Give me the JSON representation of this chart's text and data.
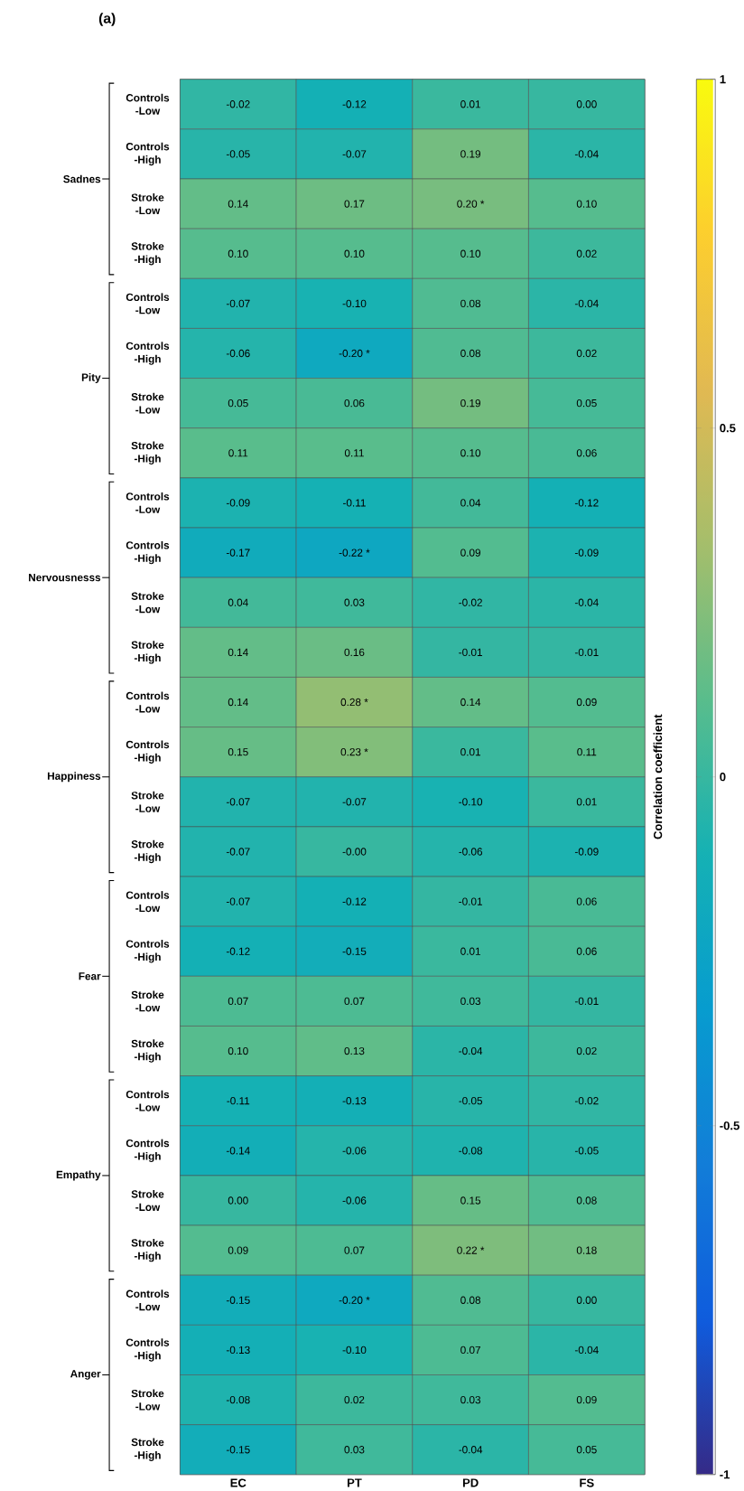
{
  "chart_data": {
    "type": "heatmap",
    "title": "(a)",
    "categories": [
      "EC",
      "PT",
      "PD",
      "FS"
    ],
    "y_categories": [
      "Controls -Low",
      "Controls -High",
      "Stroke -Low",
      "Stroke -High",
      "Controls -Low",
      "Controls -High",
      "Stroke -Low",
      "Stroke -High",
      "Controls -Low",
      "Controls -High",
      "Stroke -Low",
      "Stroke -High",
      "Controls -Low",
      "Controls -High",
      "Stroke -Low",
      "Stroke -High",
      "Controls -Low",
      "Controls -High",
      "Stroke -Low",
      "Stroke -High",
      "Controls -Low",
      "Controls -High",
      "Stroke -Low",
      "Stroke -High",
      "Controls -Low",
      "Controls -High",
      "Stroke -Low",
      "Stroke -High"
    ],
    "annotations": [
      "Sadnes",
      "Pity",
      "Nervousnesss",
      "Happiness",
      "Fear",
      "Empathy",
      "Anger"
    ],
    "cells": [
      [
        -0.02,
        -0.12,
        0.01,
        0.0
      ],
      [
        -0.05,
        -0.07,
        0.19,
        -0.04
      ],
      [
        0.14,
        0.17,
        0.2,
        0.1
      ],
      [
        0.1,
        0.1,
        0.1,
        0.02
      ],
      [
        -0.07,
        -0.1,
        0.08,
        -0.04
      ],
      [
        -0.06,
        -0.2,
        0.08,
        0.02
      ],
      [
        0.05,
        0.06,
        0.19,
        0.05
      ],
      [
        0.11,
        0.11,
        0.1,
        0.06
      ],
      [
        -0.09,
        -0.11,
        0.04,
        -0.12
      ],
      [
        -0.17,
        -0.22,
        0.09,
        -0.09
      ],
      [
        0.04,
        0.03,
        -0.02,
        -0.04
      ],
      [
        0.14,
        0.16,
        -0.01,
        -0.01
      ],
      [
        0.14,
        0.28,
        0.14,
        0.09
      ],
      [
        0.15,
        0.23,
        0.01,
        0.11
      ],
      [
        -0.07,
        -0.07,
        -0.1,
        0.01
      ],
      [
        -0.07,
        -0.0,
        -0.06,
        -0.09
      ],
      [
        -0.07,
        -0.12,
        -0.01,
        0.06
      ],
      [
        -0.12,
        -0.15,
        0.01,
        0.06
      ],
      [
        0.07,
        0.07,
        0.03,
        -0.01
      ],
      [
        0.1,
        0.13,
        -0.04,
        0.02
      ],
      [
        -0.11,
        -0.13,
        -0.05,
        -0.02
      ],
      [
        -0.14,
        -0.06,
        -0.08,
        -0.05
      ],
      [
        0.0,
        -0.06,
        0.15,
        0.08
      ],
      [
        0.09,
        0.07,
        0.22,
        0.18
      ],
      [
        -0.15,
        -0.2,
        0.08,
        0.0
      ],
      [
        -0.13,
        -0.1,
        0.07,
        -0.04
      ],
      [
        -0.08,
        0.02,
        0.03,
        0.09
      ],
      [
        -0.15,
        0.03,
        -0.04,
        0.05
      ]
    ],
    "cell_labels": [
      [
        "-0.02",
        "-0.12",
        "0.01",
        "0.00"
      ],
      [
        "-0.05",
        "-0.07",
        "0.19",
        "-0.04"
      ],
      [
        "0.14",
        "0.17",
        "0.20 *",
        "0.10"
      ],
      [
        "0.10",
        "0.10",
        "0.10",
        "0.02"
      ],
      [
        "-0.07",
        "-0.10",
        "0.08",
        "-0.04"
      ],
      [
        "-0.06",
        "-0.20 *",
        "0.08",
        "0.02"
      ],
      [
        "0.05",
        "0.06",
        "0.19",
        "0.05"
      ],
      [
        "0.11",
        "0.11",
        "0.10",
        "0.06"
      ],
      [
        "-0.09",
        "-0.11",
        "0.04",
        "-0.12"
      ],
      [
        "-0.17",
        "-0.22 *",
        "0.09",
        "-0.09"
      ],
      [
        "0.04",
        "0.03",
        "-0.02",
        "-0.04"
      ],
      [
        "0.14",
        "0.16",
        "-0.01",
        "-0.01"
      ],
      [
        "0.14",
        "0.28 *",
        "0.14",
        "0.09"
      ],
      [
        "0.15",
        "0.23 *",
        "0.01",
        "0.11"
      ],
      [
        "-0.07",
        "-0.07",
        "-0.10",
        "0.01"
      ],
      [
        "-0.07",
        "-0.00",
        "-0.06",
        "-0.09"
      ],
      [
        "-0.07",
        "-0.12",
        "-0.01",
        "0.06"
      ],
      [
        "-0.12",
        "-0.15",
        "0.01",
        "0.06"
      ],
      [
        "0.07",
        "0.07",
        "0.03",
        "-0.01"
      ],
      [
        "0.10",
        "0.13",
        "-0.04",
        "0.02"
      ],
      [
        "-0.11",
        "-0.13",
        "-0.05",
        "-0.02"
      ],
      [
        "-0.14",
        "-0.06",
        "-0.08",
        "-0.05"
      ],
      [
        "0.00",
        "-0.06",
        "0.15",
        "0.08"
      ],
      [
        "0.09",
        "0.07",
        "0.22 *",
        "0.18"
      ],
      [
        "-0.15",
        "-0.20 *",
        "0.08",
        "0.00"
      ],
      [
        "-0.13",
        "-0.10",
        "0.07",
        "-0.04"
      ],
      [
        "-0.08",
        "0.02",
        "0.03",
        "0.09"
      ],
      [
        "-0.15",
        "0.03",
        "-0.04",
        "0.05"
      ]
    ],
    "clabel": "Correlation coefficient",
    "clim": [
      -1,
      1
    ],
    "cticks": [
      -1,
      -0.5,
      0,
      0.5,
      1
    ]
  }
}
